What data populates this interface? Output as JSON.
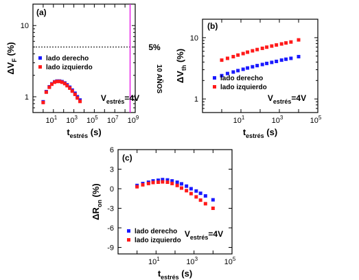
{
  "colors": {
    "blue": "#1a1aff",
    "red": "#ff1a1a",
    "magenta": "#e61ee6"
  },
  "chart_data": [
    {
      "id": "a",
      "type": "scatter",
      "tag": "(a)",
      "x_log": true,
      "y_log": true,
      "xlim": [
        0.1,
        1000000000
      ],
      "ylim": [
        0.6,
        20
      ],
      "x_ticks": [
        10,
        1000,
        100000,
        10000000,
        1000000000
      ],
      "x_tick_labels": [
        {
          "base": "10",
          "exp": "1"
        },
        {
          "base": "10",
          "exp": "3"
        },
        {
          "base": "10",
          "exp": "5"
        },
        {
          "base": "10",
          "exp": "7"
        },
        {
          "base": "10",
          "exp": "9"
        }
      ],
      "y_ticks": [
        1,
        10
      ],
      "y_tick_labels": [
        "1",
        "10"
      ],
      "xlabel": {
        "main": "t",
        "sub": "estrés",
        "tail": " (s)"
      },
      "ylabel": {
        "main": "ΔV",
        "sub": "F",
        "tail": " (%)"
      },
      "series": [
        {
          "name": "lado derecho",
          "color": "#1a1aff",
          "x": [
            1,
            2,
            4,
            7,
            13,
            22,
            40,
            70,
            130,
            220,
            400,
            700,
            1300,
            2200,
            4000
          ],
          "y": [
            0.85,
            1.18,
            1.38,
            1.52,
            1.62,
            1.66,
            1.66,
            1.63,
            1.56,
            1.47,
            1.36,
            1.24,
            1.12,
            1.0,
            0.9
          ]
        },
        {
          "name": "lado izquierdo",
          "color": "#ff1a1a",
          "x": [
            1,
            2,
            4,
            7,
            13,
            22,
            40,
            70,
            130,
            220,
            400,
            700,
            1300,
            2200,
            4000
          ],
          "y": [
            0.83,
            1.16,
            1.36,
            1.5,
            1.6,
            1.64,
            1.64,
            1.6,
            1.53,
            1.43,
            1.32,
            1.2,
            1.08,
            0.96,
            0.86
          ]
        }
      ],
      "hline": {
        "y": 5,
        "label": "5%"
      },
      "vline": {
        "x": 315360000,
        "label": "10 AÑOS"
      },
      "annotation": {
        "main": "V",
        "sub": "estrés",
        "tail": "=4V"
      },
      "legend": "upper-left"
    },
    {
      "id": "b",
      "type": "scatter",
      "tag": "(b)",
      "x_log": true,
      "y_log": true,
      "xlim": [
        0.1,
        100000
      ],
      "ylim": [
        0.6,
        20
      ],
      "x_ticks": [
        10,
        1000,
        100000
      ],
      "x_tick_labels": [
        {
          "base": "10",
          "exp": "1"
        },
        {
          "base": "10",
          "exp": "3"
        },
        {
          "base": "10",
          "exp": "5"
        }
      ],
      "y_ticks": [
        1,
        10
      ],
      "y_tick_labels": [
        "1",
        "10"
      ],
      "xlabel": {
        "main": "t",
        "sub": "estrés",
        "tail": " (s)"
      },
      "ylabel": {
        "main": "ΔV",
        "sub": "th",
        "tail": " (%)"
      },
      "series": [
        {
          "name": "lado derecho",
          "color": "#1a1aff",
          "x": [
            1,
            2,
            4,
            7,
            13,
            22,
            40,
            70,
            130,
            220,
            400,
            700,
            1300,
            2200,
            4000,
            10000
          ],
          "y": [
            2.4,
            2.6,
            2.75,
            2.9,
            3.05,
            3.2,
            3.35,
            3.5,
            3.65,
            3.8,
            3.95,
            4.1,
            4.3,
            4.45,
            4.6,
            4.9
          ]
        },
        {
          "name": "lado izquierdo",
          "color": "#ff1a1a",
          "x": [
            1,
            2,
            4,
            7,
            13,
            22,
            40,
            70,
            130,
            220,
            400,
            700,
            1300,
            2200,
            4000,
            10000
          ],
          "y": [
            4.3,
            4.6,
            4.9,
            5.2,
            5.5,
            5.8,
            6.1,
            6.4,
            6.7,
            7.0,
            7.3,
            7.6,
            7.9,
            8.2,
            8.5,
            9.2
          ]
        }
      ],
      "annotation": {
        "main": "V",
        "sub": "estrés",
        "tail": "=4V"
      },
      "legend": "lower-left"
    },
    {
      "id": "c",
      "type": "scatter",
      "tag": "(c)",
      "x_log": true,
      "y_log": false,
      "xlim": [
        0.1,
        100000
      ],
      "ylim": [
        -10,
        6
      ],
      "x_ticks": [
        10,
        1000,
        100000
      ],
      "x_tick_labels": [
        {
          "base": "10",
          "exp": "1"
        },
        {
          "base": "10",
          "exp": "3"
        },
        {
          "base": "10",
          "exp": "5"
        }
      ],
      "y_ticks": [
        -9,
        -6,
        -3,
        0,
        3,
        6
      ],
      "y_tick_labels": [
        "-9",
        "-6",
        "-3",
        "0",
        "3",
        "6"
      ],
      "xlabel": {
        "main": "t",
        "sub": "estrés",
        "tail": " (s)"
      },
      "ylabel": {
        "main": "ΔR",
        "sub": "on",
        "tail": " (%)"
      },
      "series": [
        {
          "name": "lado derecho",
          "color": "#1a1aff",
          "x": [
            1,
            2,
            4,
            7,
            13,
            22,
            40,
            70,
            130,
            220,
            400,
            700,
            1300,
            2200,
            4000,
            10000
          ],
          "y": [
            0.5,
            0.8,
            1.0,
            1.2,
            1.3,
            1.4,
            1.35,
            1.2,
            1.0,
            0.75,
            0.4,
            0.0,
            -0.35,
            -0.7,
            -1.1,
            -1.7
          ]
        },
        {
          "name": "lado izquierdo",
          "color": "#ff1a1a",
          "x": [
            1,
            2,
            4,
            7,
            13,
            22,
            40,
            70,
            130,
            220,
            400,
            700,
            1300,
            2200,
            4000,
            10000
          ],
          "y": [
            0.3,
            0.6,
            0.8,
            0.95,
            1.0,
            1.05,
            1.0,
            0.8,
            0.5,
            0.1,
            -0.3,
            -0.75,
            -1.25,
            -1.75,
            -2.3,
            -3.0
          ]
        }
      ],
      "annotation": {
        "main": "V",
        "sub": "estrés",
        "tail": "=4V"
      },
      "legend": "lower-left"
    }
  ]
}
